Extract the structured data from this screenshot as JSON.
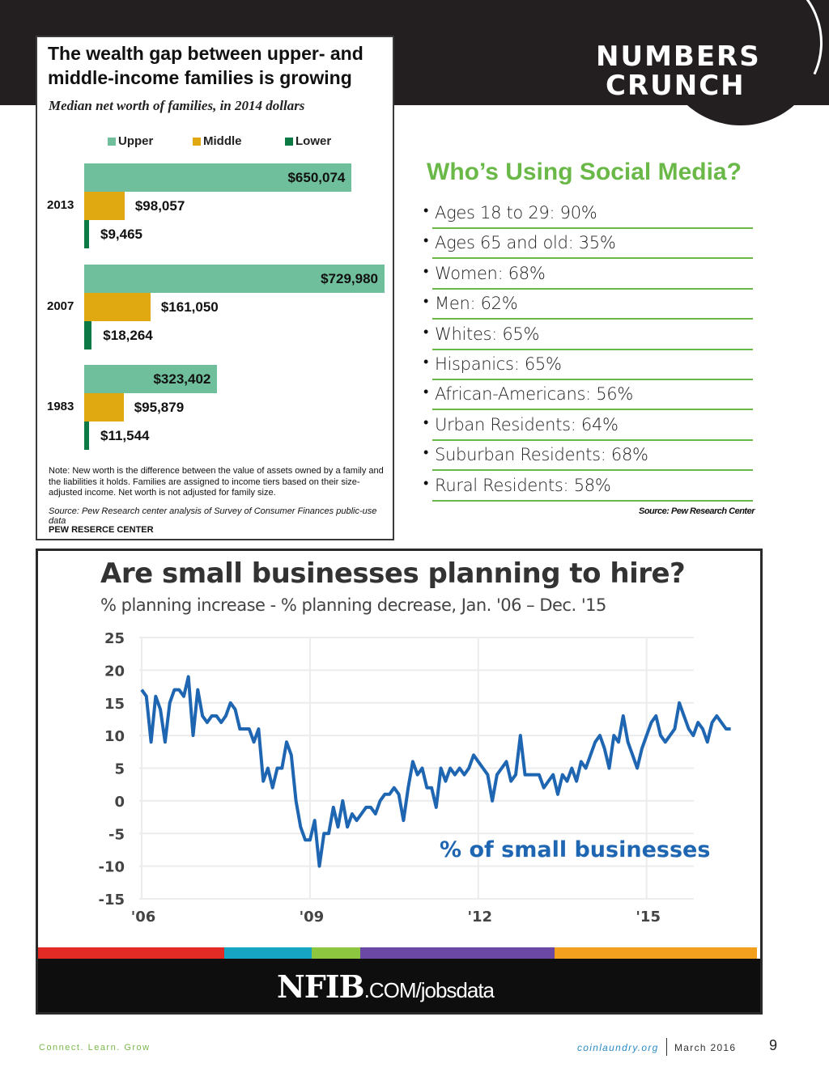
{
  "header": {
    "brand_line1": "NUMBERS",
    "brand_line2": "CRUNCH"
  },
  "wealth_chart": {
    "title": "The wealth gap between upper- and middle-income families is growing",
    "subtitle": "Median net worth of families, in 2014 dollars",
    "note": "Note: New worth is the difference between the value of assets owned by a family and the liabilities it holds. Families are assigned to income tiers based on their size-adjusted income. Net worth is not adjusted for family size.",
    "source": "Source: Pew Research center analysis of Survey of Consumer Finances public-use data",
    "org": "PEW RESERCE CENTER"
  },
  "social_media": {
    "title": "Who’s Using Social Media?",
    "bullet": "•",
    "items": [
      {
        "label": "Ages 18 to 29: 90%",
        "value": 90
      },
      {
        "label": "Ages 65 and old: 35%",
        "value": 35
      },
      {
        "label": "Women: 68%",
        "value": 68
      },
      {
        "label": "Men: 62%",
        "value": 62
      },
      {
        "label": "Whites: 65%",
        "value": 65
      },
      {
        "label": "Hispanics: 65%",
        "value": 65
      },
      {
        "label": "African-Americans: 56%",
        "value": 56
      },
      {
        "label": "Urban Residents: 64%",
        "value": 64
      },
      {
        "label": "Suburban Residents: 68%",
        "value": 68
      },
      {
        "label": "Rural Residents: 58%",
        "value": 58
      }
    ],
    "source": "Source: Pew Research Center",
    "accent_color": "#6ab848"
  },
  "nfib_chart": {
    "title": "Are small businesses planning to hire?",
    "subtitle": "% planning increase - % planning decrease, Jan. '06 – Dec. '15",
    "series_label": "% of small businesses",
    "logo_big": "NFIB",
    "logo_small": ".COM/jobsdata",
    "stripe_colors": [
      "#e32b26",
      "#16a6c4",
      "#8dc63f",
      "#6a48a3",
      "#f2a01e"
    ]
  },
  "footer": {
    "tagline": "Connect. Learn. Grow",
    "site": "coinlaundry.org",
    "date": "March 2016",
    "page": "9"
  },
  "chart_data": [
    {
      "type": "bar",
      "orientation": "horizontal",
      "title": "The wealth gap between upper- and middle-income families is growing",
      "subtitle": "Median net worth of families, in 2014 dollars",
      "categories": [
        "2013",
        "2007",
        "1983"
      ],
      "series": [
        {
          "name": "Upper",
          "color": "#6fbf9c",
          "values": [
            650074,
            729980,
            323402
          ],
          "labels": [
            "$650,074",
            "$729,980",
            "$323,402"
          ]
        },
        {
          "name": "Middle",
          "color": "#e0a911",
          "values": [
            98057,
            161050,
            95879
          ],
          "labels": [
            "$98,057",
            "$161,050",
            "$95,879"
          ]
        },
        {
          "name": "Lower",
          "color": "#0d7a45",
          "values": [
            9465,
            18264,
            11544
          ],
          "labels": [
            "$9,465",
            "$18,264",
            "$11,544"
          ]
        }
      ],
      "legend": "top-center",
      "xlim": [
        0,
        729980
      ]
    },
    {
      "type": "line",
      "title": "Are small businesses planning to hire?",
      "subtitle": "% planning increase - % planning decrease, Jan. '06 – Dec. '15",
      "ylim": [
        -15,
        25
      ],
      "yticks": [
        25,
        20,
        15,
        10,
        5,
        0,
        -5,
        -10,
        -15
      ],
      "xticks": [
        {
          "label": "'06",
          "year": 2006
        },
        {
          "label": "'09",
          "year": 2009
        },
        {
          "label": "'12",
          "year": 2012
        },
        {
          "label": "'15",
          "year": 2015
        }
      ],
      "xlim": [
        2006,
        2016
      ],
      "grid": true,
      "series": [
        {
          "name": "% of small businesses",
          "color": "#1f66b2",
          "start": "2006-01",
          "frequency": "monthly",
          "values": [
            17,
            16,
            9,
            16,
            14,
            9,
            15,
            17,
            17,
            16,
            19,
            10,
            17,
            13,
            12,
            13,
            13,
            12,
            13,
            15,
            14,
            11,
            11,
            11,
            9,
            11,
            3,
            5,
            2,
            5,
            5,
            9,
            7,
            0,
            -4,
            -6,
            -6,
            -3,
            -10,
            -5,
            -5,
            -1,
            -4,
            0,
            -4,
            -2,
            -3,
            -2,
            -1,
            -1,
            -2,
            0,
            1,
            1,
            2,
            1,
            -3,
            2,
            6,
            4,
            5,
            2,
            2,
            -1,
            5,
            3,
            5,
            4,
            5,
            4,
            5,
            7,
            6,
            5,
            4,
            0,
            4,
            5,
            6,
            3,
            4,
            10,
            4,
            4,
            4,
            4,
            2,
            3,
            4,
            1,
            4,
            3,
            5,
            3,
            6,
            5,
            7,
            9,
            10,
            8,
            5,
            10,
            9,
            13,
            9,
            7,
            5,
            8,
            10,
            12,
            13,
            10,
            9,
            10,
            11,
            15,
            13,
            11,
            10,
            12,
            11,
            9,
            12,
            13,
            12,
            11,
            11
          ]
        }
      ],
      "annotations": [
        "% of small businesses"
      ]
    }
  ]
}
